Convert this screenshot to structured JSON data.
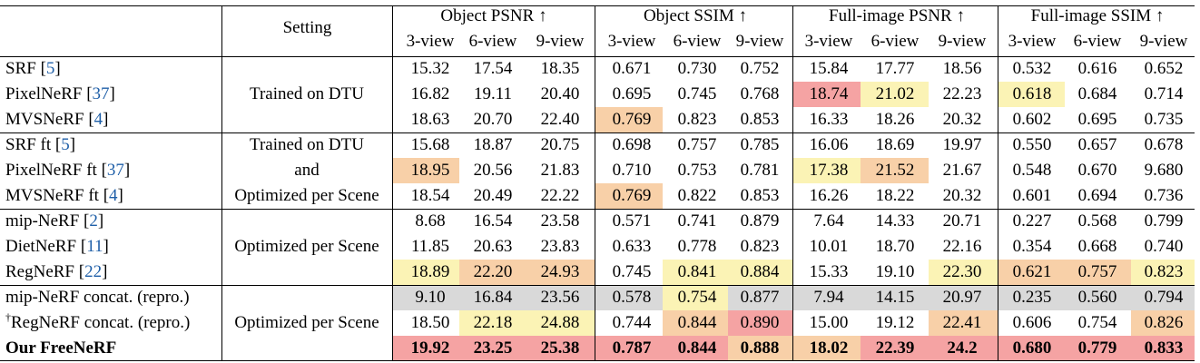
{
  "header": {
    "setting_label": "Setting",
    "groups": [
      "Object PSNR ↑",
      "Object SSIM ↑",
      "Full-image PSNR ↑",
      "Full-image SSIM ↑"
    ],
    "views": [
      "3-view",
      "6-view",
      "9-view"
    ]
  },
  "colors": {
    "red": "#f5a3a3",
    "orange": "#f8d0a8",
    "yellow": "#fbf3b5",
    "gray": "#d9d9d9"
  },
  "rows": [
    {
      "name": "SRF",
      "cite": "5",
      "values": [
        "15.32",
        "17.54",
        "18.35",
        "0.671",
        "0.730",
        "0.752",
        "15.84",
        "17.77",
        "18.56",
        "0.532",
        "0.616",
        "0.652"
      ],
      "hl": {}
    },
    {
      "name": "PixelNeRF",
      "cite": "37",
      "values": [
        "16.82",
        "19.11",
        "20.40",
        "0.695",
        "0.745",
        "0.768",
        "18.74",
        "21.02",
        "22.23",
        "0.618",
        "0.684",
        "0.714"
      ],
      "hl": {
        "6": "red",
        "7": "yellow",
        "9": "yellow"
      }
    },
    {
      "name": "MVSNeRF",
      "cite": "4",
      "values": [
        "18.63",
        "20.70",
        "22.40",
        "0.769",
        "0.823",
        "0.853",
        "16.33",
        "18.26",
        "20.32",
        "0.602",
        "0.695",
        "0.735"
      ],
      "hl": {
        "3": "orange"
      }
    },
    {
      "name": "SRF ft",
      "cite": "5",
      "values": [
        "15.68",
        "18.87",
        "20.75",
        "0.698",
        "0.757",
        "0.785",
        "16.06",
        "18.69",
        "19.97",
        "0.550",
        "0.657",
        "0.678"
      ],
      "hl": {}
    },
    {
      "name": "PixelNeRF ft",
      "cite": "37",
      "values": [
        "18.95",
        "20.56",
        "21.83",
        "0.710",
        "0.753",
        "0.781",
        "17.38",
        "21.52",
        "21.67",
        "0.548",
        "0.670",
        "9.680"
      ],
      "hl": {
        "0": "orange",
        "6": "yellow",
        "7": "orange"
      }
    },
    {
      "name": "MVSNeRF ft",
      "cite": "4",
      "values": [
        "18.54",
        "20.49",
        "22.22",
        "0.769",
        "0.822",
        "0.853",
        "16.26",
        "18.22",
        "20.32",
        "0.601",
        "0.694",
        "0.736"
      ],
      "hl": {
        "3": "orange"
      }
    },
    {
      "name": "mip-NeRF",
      "cite": "2",
      "values": [
        "8.68",
        "16.54",
        "23.58",
        "0.571",
        "0.741",
        "0.879",
        "7.64",
        "14.33",
        "20.71",
        "0.227",
        "0.568",
        "0.799"
      ],
      "hl": {}
    },
    {
      "name": "DietNeRF",
      "cite": "11",
      "values": [
        "11.85",
        "20.63",
        "23.83",
        "0.633",
        "0.778",
        "0.823",
        "10.01",
        "18.70",
        "22.16",
        "0.354",
        "0.668",
        "0.740"
      ],
      "hl": {}
    },
    {
      "name": "RegNeRF",
      "cite": "22",
      "values": [
        "18.89",
        "22.20",
        "24.93",
        "0.745",
        "0.841",
        "0.884",
        "15.33",
        "19.10",
        "22.30",
        "0.621",
        "0.757",
        "0.823"
      ],
      "hl": {
        "0": "yellow",
        "1": "orange",
        "2": "orange",
        "4": "yellow",
        "5": "yellow",
        "8": "yellow",
        "9": "orange",
        "10": "orange",
        "11": "yellow"
      }
    },
    {
      "name": "mip-NeRF concat. (repro.)",
      "cite": "",
      "values": [
        "9.10",
        "16.84",
        "23.56",
        "0.578",
        "0.754",
        "0.877",
        "7.94",
        "14.15",
        "20.97",
        "0.235",
        "0.560",
        "0.794"
      ],
      "hl": {
        "0": "gray",
        "1": "gray",
        "2": "gray",
        "3": "gray",
        "4": "yellow",
        "5": "gray",
        "6": "gray",
        "7": "gray",
        "8": "gray",
        "9": "gray",
        "10": "gray",
        "11": "gray"
      }
    },
    {
      "name": "RegNeRF concat. (repro.)",
      "prefix": "†",
      "cite": "",
      "values": [
        "18.50",
        "22.18",
        "24.88",
        "0.744",
        "0.844",
        "0.890",
        "15.00",
        "19.12",
        "22.41",
        "0.606",
        "0.754",
        "0.826"
      ],
      "hl": {
        "1": "yellow",
        "2": "yellow",
        "4": "orange",
        "5": "red",
        "8": "orange",
        "11": "orange"
      }
    },
    {
      "name": "Our FreeNeRF",
      "cite": "",
      "bold": true,
      "values": [
        "19.92",
        "23.25",
        "25.38",
        "0.787",
        "0.844",
        "0.888",
        "18.02",
        "22.39",
        "24.2",
        "0.680",
        "0.779",
        "0.833"
      ],
      "hl": {
        "0": "red",
        "1": "red",
        "2": "red",
        "3": "red",
        "4": "red",
        "5": "orange",
        "6": "orange",
        "7": "red",
        "8": "red",
        "9": "red",
        "10": "red",
        "11": "red"
      }
    }
  ],
  "settings": [
    {
      "lines": [
        "Trained on DTU"
      ]
    },
    {
      "lines": [
        "Trained on DTU",
        "and",
        "Optimized per Scene"
      ]
    },
    {
      "lines": [
        "Optimized per Scene"
      ]
    },
    {
      "lines": [
        "Optimized per Scene"
      ]
    }
  ]
}
